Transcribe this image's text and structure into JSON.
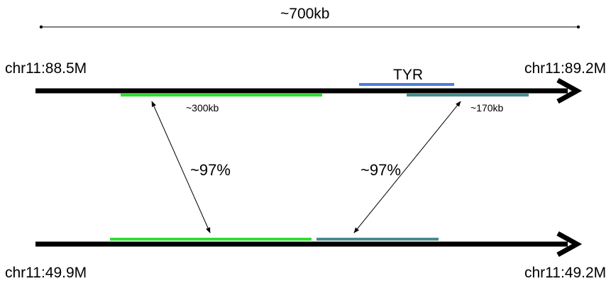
{
  "scale": {
    "label": "~700kb"
  },
  "top_track": {
    "start_label": "chr11:88.5M",
    "end_label": "chr11:89.2M",
    "gene_label": "TYR",
    "segment_green_label": "~300kb",
    "segment_teal_label": "~170kb"
  },
  "bottom_track": {
    "start_label": "chr11:49.9M",
    "end_label": "chr11:49.2M"
  },
  "links": {
    "left_identity": "~97%",
    "right_identity": "~97%"
  },
  "colors": {
    "track": "#000000",
    "gene": "#4a7fd8",
    "segment_green": "#33dd33",
    "segment_teal": "#4a8c8c"
  }
}
